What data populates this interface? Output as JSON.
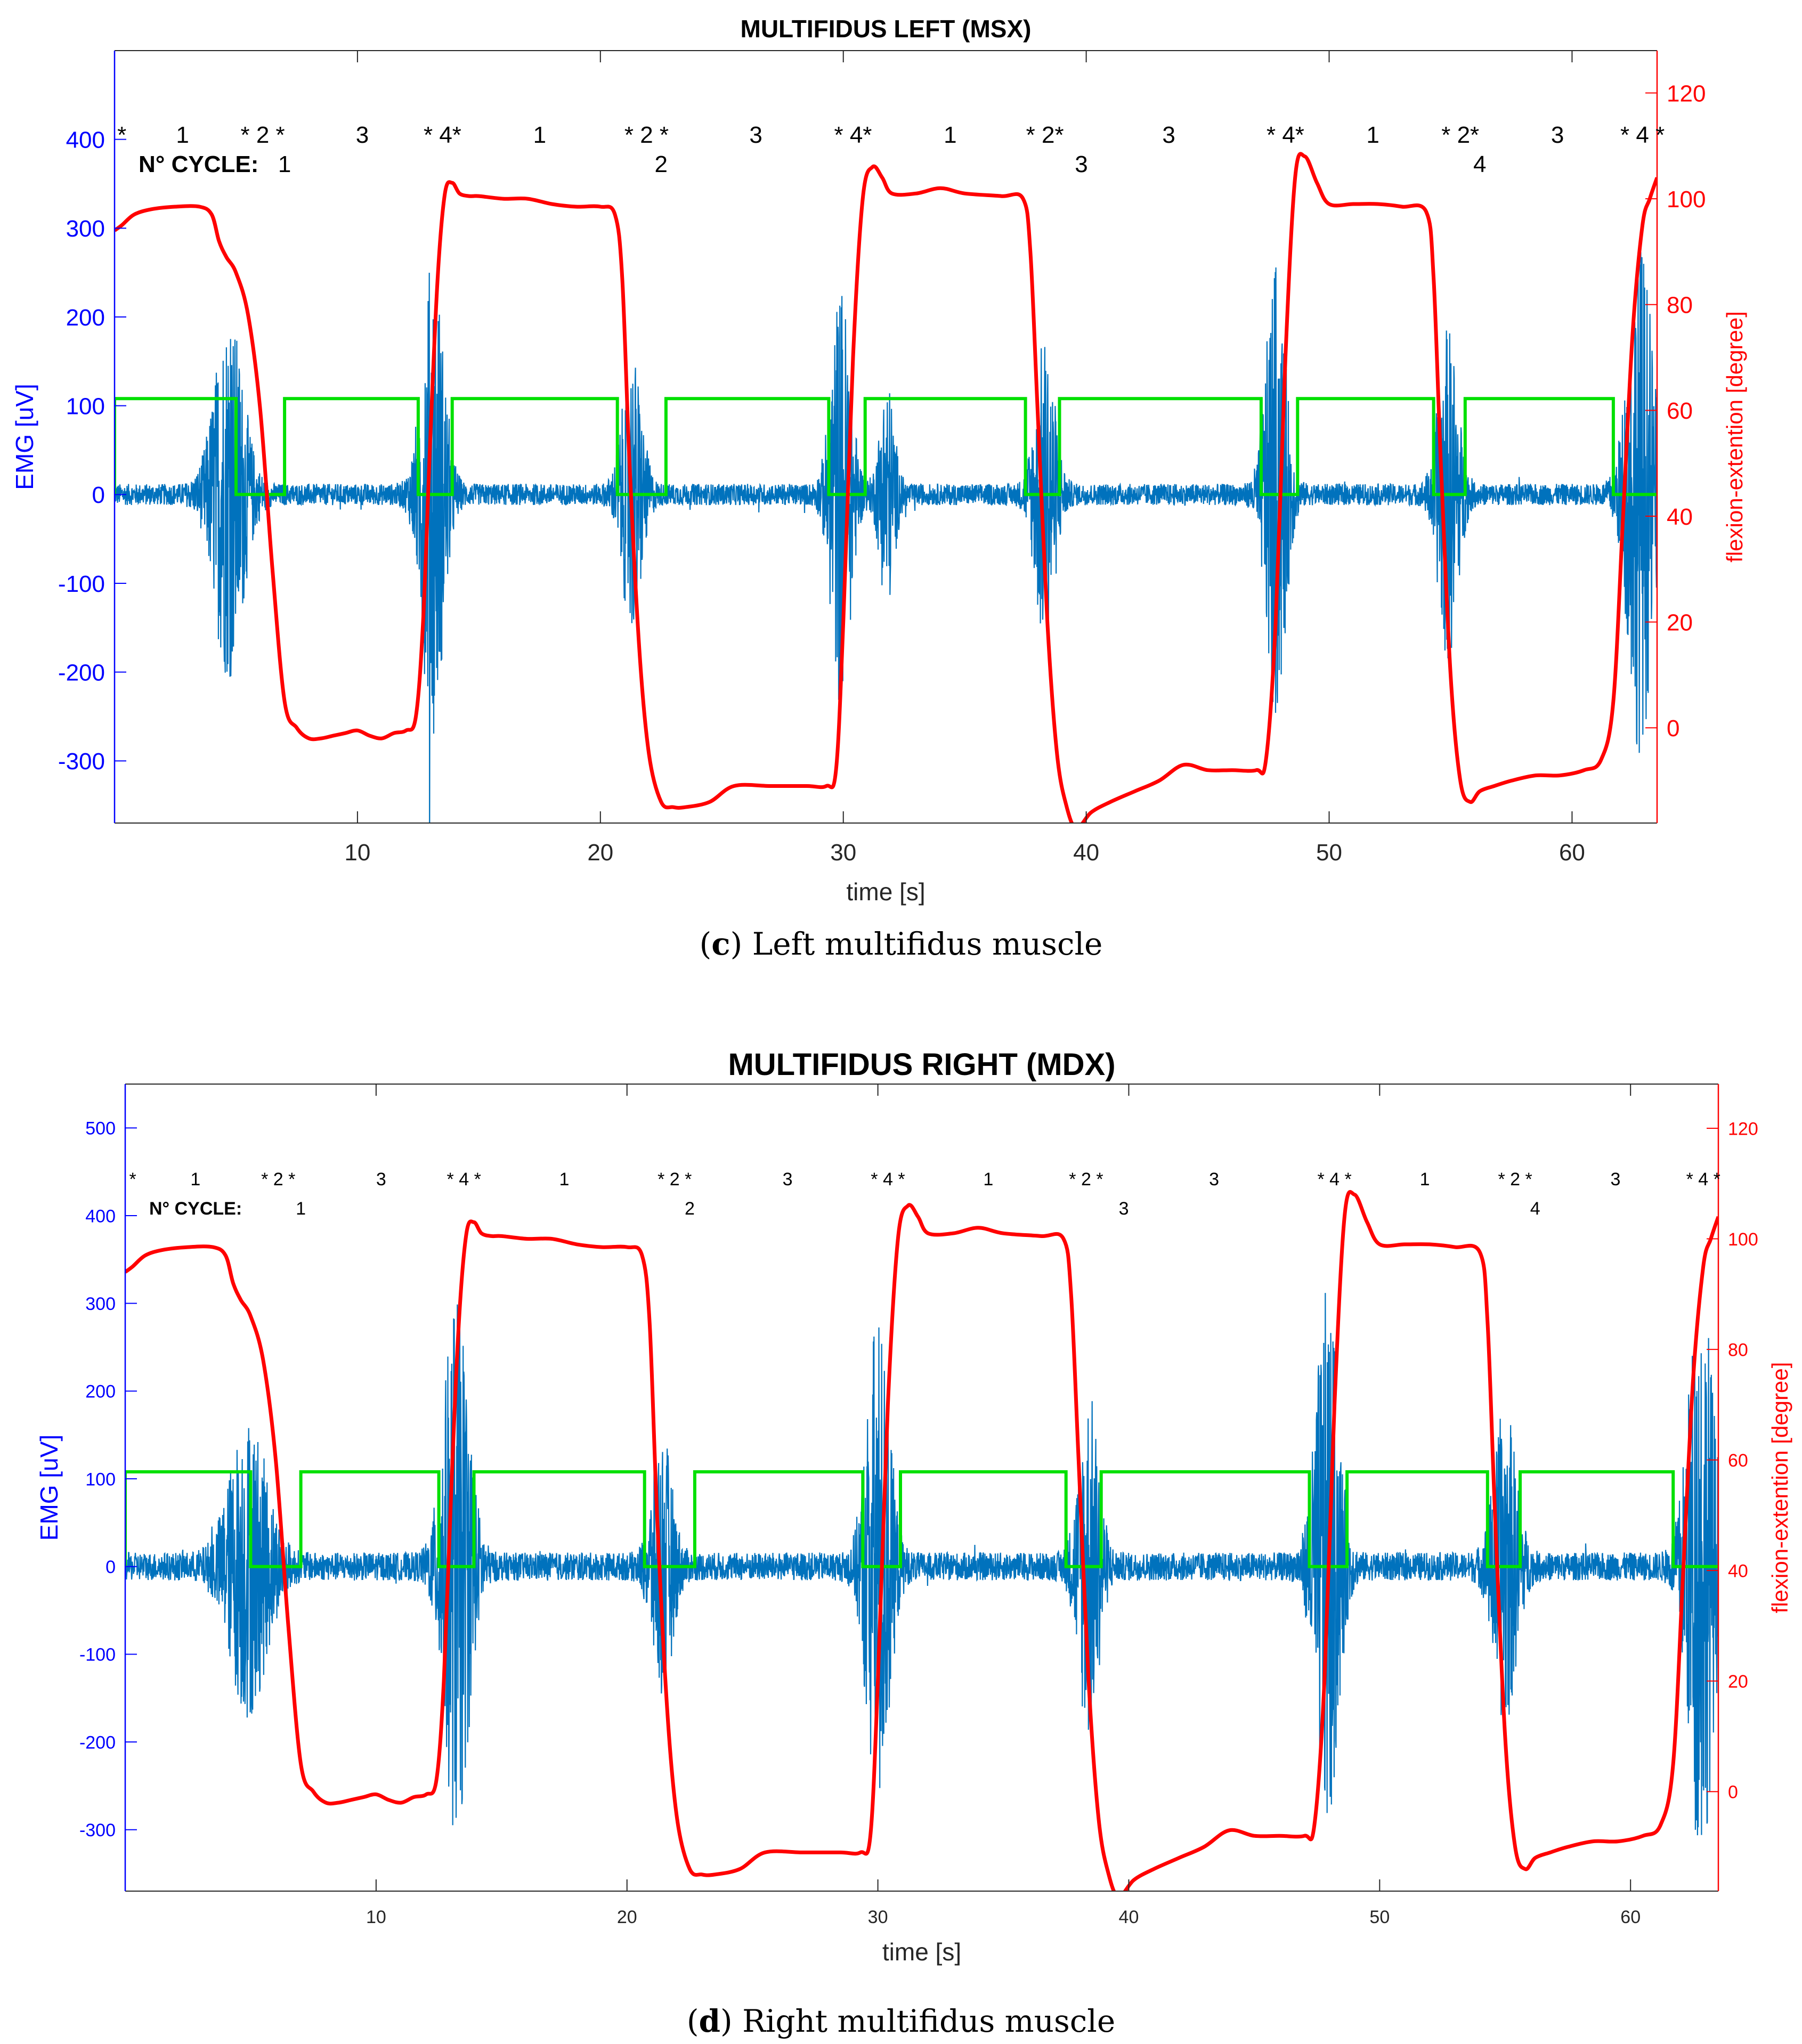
{
  "colors": {
    "emg": "#0072BD",
    "angle": "#FF0000",
    "phase": "#00E000",
    "left_axis": "#0000FF",
    "right_axis": "#FF0000",
    "text": "#000000"
  },
  "chart_data": [
    {
      "type": "line",
      "panel": "c",
      "title": "MULTIFIDUS LEFT (MSX)",
      "xlabel": "time [s]",
      "ylabel_left": "EMG [uV]",
      "ylabel_right": "flexion-extention [degree]",
      "xlim": [
        0,
        63.5
      ],
      "ylim_left": [
        -370,
        500
      ],
      "ylim_right": [
        -18,
        128
      ],
      "xticks": [
        10,
        20,
        30,
        40,
        50,
        60
      ],
      "yticks_left": [
        -300,
        -200,
        -100,
        0,
        100,
        200,
        300,
        400
      ],
      "yticks_right": [
        0,
        20,
        40,
        60,
        80,
        100,
        120
      ],
      "cycle_label": "N° CYCLE:",
      "cycles": [
        {
          "label": "1",
          "x": 7.0
        },
        {
          "label": "2",
          "x": 22.5
        },
        {
          "label": "3",
          "x": 39.8
        },
        {
          "label": "4",
          "x": 56.2
        }
      ],
      "phase_labels": [
        {
          "text": "*",
          "x": 0.3
        },
        {
          "text": "1",
          "x": 2.8
        },
        {
          "text": "* 2 *",
          "x": 6.1
        },
        {
          "text": "3",
          "x": 10.2
        },
        {
          "text": "* 4*",
          "x": 13.5
        },
        {
          "text": "1",
          "x": 17.5
        },
        {
          "text": "* 2 *",
          "x": 21.9
        },
        {
          "text": "3",
          "x": 26.4
        },
        {
          "text": "* 4*",
          "x": 30.4
        },
        {
          "text": "1",
          "x": 34.4
        },
        {
          "text": "* 2*",
          "x": 38.3
        },
        {
          "text": "3",
          "x": 43.4
        },
        {
          "text": "* 4*",
          "x": 48.2
        },
        {
          "text": "1",
          "x": 51.8
        },
        {
          "text": "* 2*",
          "x": 55.4
        },
        {
          "text": "3",
          "x": 59.4
        },
        {
          "text": "* 4 *",
          "x": 62.9
        }
      ],
      "series": [
        {
          "name": "flexion-extension angle",
          "axis": "right",
          "x": [
            0,
            0.3,
            0.8,
            1.5,
            2.5,
            3.5,
            4.0,
            4.3,
            4.6,
            5.0,
            5.5,
            6.0,
            6.5,
            7.0,
            7.5,
            8.0,
            8.5,
            9.0,
            9.5,
            10.0,
            10.5,
            11.0,
            11.5,
            12.0,
            12.4,
            12.7,
            13.0,
            13.3,
            13.6,
            13.9,
            14.2,
            14.6,
            15.0,
            16.0,
            17.0,
            18.0,
            19.0,
            20.0,
            20.6,
            20.9,
            21.2,
            21.6,
            22.0,
            22.5,
            23.0,
            23.5,
            24.5,
            25.5,
            27.0,
            28.5,
            29.3,
            29.7,
            30.0,
            30.4,
            30.8,
            31.2,
            31.6,
            32.0,
            33.0,
            34.0,
            35.0,
            36.5,
            37.4,
            37.7,
            38.0,
            38.4,
            38.8,
            39.2,
            39.6,
            40.2,
            41.0,
            42.0,
            43.0,
            44.0,
            45.0,
            46.0,
            47.0,
            47.4,
            47.8,
            48.2,
            48.6,
            49.0,
            49.5,
            50.0,
            51.0,
            52.0,
            53.0,
            54.0,
            54.3,
            54.6,
            55.0,
            55.4,
            55.8,
            56.2,
            56.8,
            57.5,
            58.5,
            59.5,
            60.5,
            61.2,
            61.7,
            62.1,
            62.5,
            62.9,
            63.2,
            63.5
          ],
          "y": [
            94,
            95,
            97,
            98,
            98.5,
            98.5,
            97,
            92,
            89,
            86,
            78,
            60,
            30,
            5,
            0,
            -2,
            -2,
            -1.5,
            -1,
            -0.5,
            -1.5,
            -2,
            -1,
            -0.5,
            2,
            20,
            55,
            85,
            101,
            103,
            101,
            100.5,
            100.5,
            100,
            100,
            99,
            98.5,
            98.5,
            97,
            85,
            50,
            15,
            -5,
            -14,
            -15,
            -15,
            -14,
            -11,
            -11,
            -11,
            -11,
            -8,
            20,
            70,
            100,
            106,
            104,
            101,
            101,
            102,
            101,
            100.5,
            100,
            90,
            60,
            20,
            -5,
            -15,
            -19,
            -16,
            -14,
            -12,
            -10,
            -7,
            -8,
            -8,
            -8,
            -6,
            20,
            70,
            104,
            108,
            103,
            99,
            99,
            99,
            98.5,
            97.5,
            85,
            50,
            10,
            -10,
            -14,
            -12,
            -11,
            -10,
            -9,
            -9,
            -8,
            -6,
            5,
            40,
            75,
            95,
            100,
            104
          ]
        },
        {
          "name": "phase indicator",
          "axis": "left",
          "x": [
            0,
            0,
            5.0,
            5.0,
            7.0,
            7.0,
            12.5,
            12.5,
            13.9,
            13.9,
            20.7,
            20.7,
            22.7,
            22.7,
            29.4,
            29.4,
            30.9,
            30.9,
            37.5,
            37.5,
            38.9,
            38.9,
            47.2,
            47.2,
            48.7,
            48.7,
            54.3,
            54.3,
            55.6,
            55.6,
            61.7,
            61.7,
            63.5
          ],
          "y": [
            0,
            108,
            108,
            0,
            0,
            108,
            108,
            0,
            0,
            108,
            108,
            0,
            0,
            108,
            108,
            0,
            0,
            108,
            108,
            0,
            0,
            108,
            108,
            0,
            0,
            108,
            108,
            0,
            0,
            108,
            108,
            0,
            0
          ]
        },
        {
          "name": "EMG",
          "axis": "left",
          "bursts": [
            {
              "t": 4.7,
              "amp": 200,
              "width": 1.2
            },
            {
              "t": 13.1,
              "amp": 260,
              "width": 0.9
            },
            {
              "t": 21.3,
              "amp": 150,
              "width": 0.8
            },
            {
              "t": 29.9,
              "amp": 230,
              "width": 0.8
            },
            {
              "t": 31.8,
              "amp": 120,
              "width": 0.6
            },
            {
              "t": 38.3,
              "amp": 170,
              "width": 0.8
            },
            {
              "t": 47.8,
              "amp": 250,
              "width": 0.8
            },
            {
              "t": 54.9,
              "amp": 180,
              "width": 0.8
            },
            {
              "t": 62.8,
              "amp": 280,
              "width": 1.0
            }
          ],
          "baseline_amp": 12
        }
      ]
    },
    {
      "type": "line",
      "panel": "d",
      "title": "MULTIFIDUS RIGHT (MDX)",
      "xlabel": "time [s]",
      "ylabel_left": "EMG [uV]",
      "ylabel_right": "flexion-extention [degree]",
      "xlim": [
        0,
        63.5
      ],
      "ylim_left": [
        -370,
        550
      ],
      "ylim_right": [
        -18,
        128
      ],
      "xticks": [
        10,
        20,
        30,
        40,
        50,
        60
      ],
      "yticks_left": [
        -300,
        -200,
        -100,
        0,
        100,
        200,
        300,
        400,
        500
      ],
      "yticks_right": [
        0,
        20,
        40,
        60,
        80,
        100,
        120
      ],
      "cycle_label": "N° CYCLE:",
      "cycles": [
        {
          "label": "1",
          "x": 7.0
        },
        {
          "label": "2",
          "x": 22.5
        },
        {
          "label": "3",
          "x": 39.8
        },
        {
          "label": "4",
          "x": 56.2
        }
      ],
      "phase_labels": [
        {
          "text": "*",
          "x": 0.3
        },
        {
          "text": "1",
          "x": 2.8
        },
        {
          "text": "*  2  *",
          "x": 6.1
        },
        {
          "text": "3",
          "x": 10.2
        },
        {
          "text": "* 4 *",
          "x": 13.5
        },
        {
          "text": "1",
          "x": 17.5
        },
        {
          "text": "*  2  *",
          "x": 21.9
        },
        {
          "text": "3",
          "x": 26.4
        },
        {
          "text": "* 4 *",
          "x": 30.4
        },
        {
          "text": "1",
          "x": 34.4
        },
        {
          "text": "* 2 *",
          "x": 38.3
        },
        {
          "text": "3",
          "x": 43.4
        },
        {
          "text": "* 4 *",
          "x": 48.2
        },
        {
          "text": "1",
          "x": 51.8
        },
        {
          "text": "* 2 *",
          "x": 55.4
        },
        {
          "text": "3",
          "x": 59.4
        },
        {
          "text": "* 4 *",
          "x": 62.9
        }
      ],
      "series": [
        {
          "name": "flexion-extension angle",
          "axis": "right",
          "x": [
            0,
            0.3,
            0.8,
            1.5,
            2.5,
            3.5,
            4.0,
            4.3,
            4.6,
            5.0,
            5.5,
            6.0,
            6.5,
            7.0,
            7.5,
            8.0,
            8.5,
            9.0,
            9.5,
            10.0,
            10.5,
            11.0,
            11.5,
            12.0,
            12.4,
            12.7,
            13.0,
            13.3,
            13.6,
            13.9,
            14.2,
            14.6,
            15.0,
            16.0,
            17.0,
            18.0,
            19.0,
            20.0,
            20.6,
            20.9,
            21.2,
            21.6,
            22.0,
            22.5,
            23.0,
            23.5,
            24.5,
            25.5,
            27.0,
            28.5,
            29.3,
            29.7,
            30.0,
            30.4,
            30.8,
            31.2,
            31.6,
            32.0,
            33.0,
            34.0,
            35.0,
            36.5,
            37.4,
            37.7,
            38.0,
            38.4,
            38.8,
            39.2,
            39.6,
            40.2,
            41.0,
            42.0,
            43.0,
            44.0,
            45.0,
            46.0,
            47.0,
            47.4,
            47.8,
            48.2,
            48.6,
            49.0,
            49.5,
            50.0,
            51.0,
            52.0,
            53.0,
            54.0,
            54.3,
            54.6,
            55.0,
            55.4,
            55.8,
            56.2,
            56.8,
            57.5,
            58.5,
            59.5,
            60.5,
            61.2,
            61.7,
            62.1,
            62.5,
            62.9,
            63.2,
            63.5
          ],
          "y": [
            94,
            95,
            97,
            98,
            98.5,
            98.5,
            97,
            92,
            89,
            86,
            78,
            60,
            30,
            5,
            0,
            -2,
            -2,
            -1.5,
            -1,
            -0.5,
            -1.5,
            -2,
            -1,
            -0.5,
            2,
            20,
            55,
            85,
            101,
            103,
            101,
            100.5,
            100.5,
            100,
            100,
            99,
            98.5,
            98.5,
            97,
            85,
            50,
            15,
            -5,
            -14,
            -15,
            -15,
            -14,
            -11,
            -11,
            -11,
            -11,
            -8,
            20,
            70,
            100,
            106,
            104,
            101,
            101,
            102,
            101,
            100.5,
            100,
            90,
            60,
            20,
            -5,
            -15,
            -19,
            -16,
            -14,
            -12,
            -10,
            -7,
            -8,
            -8,
            -8,
            -6,
            20,
            70,
            104,
            108,
            103,
            99,
            99,
            99,
            98.5,
            97.5,
            85,
            50,
            10,
            -10,
            -14,
            -12,
            -11,
            -10,
            -9,
            -9,
            -8,
            -6,
            5,
            40,
            75,
            95,
            100,
            104
          ]
        },
        {
          "name": "phase indicator",
          "axis": "left",
          "x": [
            0,
            0,
            5.0,
            5.0,
            7.0,
            7.0,
            12.5,
            12.5,
            13.9,
            13.9,
            20.7,
            20.7,
            22.7,
            22.7,
            29.4,
            29.4,
            30.9,
            30.9,
            37.5,
            37.5,
            38.9,
            38.9,
            47.2,
            47.2,
            48.7,
            48.7,
            54.3,
            54.3,
            55.6,
            55.6,
            61.7,
            61.7,
            63.5
          ],
          "y": [
            0,
            108,
            108,
            0,
            0,
            108,
            108,
            0,
            0,
            108,
            108,
            0,
            0,
            108,
            108,
            0,
            0,
            108,
            108,
            0,
            0,
            108,
            108,
            0,
            0,
            108,
            108,
            0,
            0,
            108,
            108,
            0,
            0
          ]
        },
        {
          "name": "EMG",
          "axis": "left",
          "bursts": [
            {
              "t": 4.9,
              "amp": 160,
              "width": 1.5
            },
            {
              "t": 13.2,
              "amp": 300,
              "width": 1.0
            },
            {
              "t": 21.4,
              "amp": 140,
              "width": 0.8
            },
            {
              "t": 30.0,
              "amp": 280,
              "width": 0.9
            },
            {
              "t": 38.4,
              "amp": 190,
              "width": 0.8
            },
            {
              "t": 47.9,
              "amp": 300,
              "width": 0.9
            },
            {
              "t": 55.0,
              "amp": 170,
              "width": 0.9
            },
            {
              "t": 62.8,
              "amp": 320,
              "width": 1.0
            }
          ],
          "baseline_amp": 16
        }
      ]
    }
  ],
  "captions": [
    {
      "letter": "c",
      "text": "Left multifidus muscle"
    },
    {
      "letter": "d",
      "text": "Right multifidus muscle"
    }
  ]
}
